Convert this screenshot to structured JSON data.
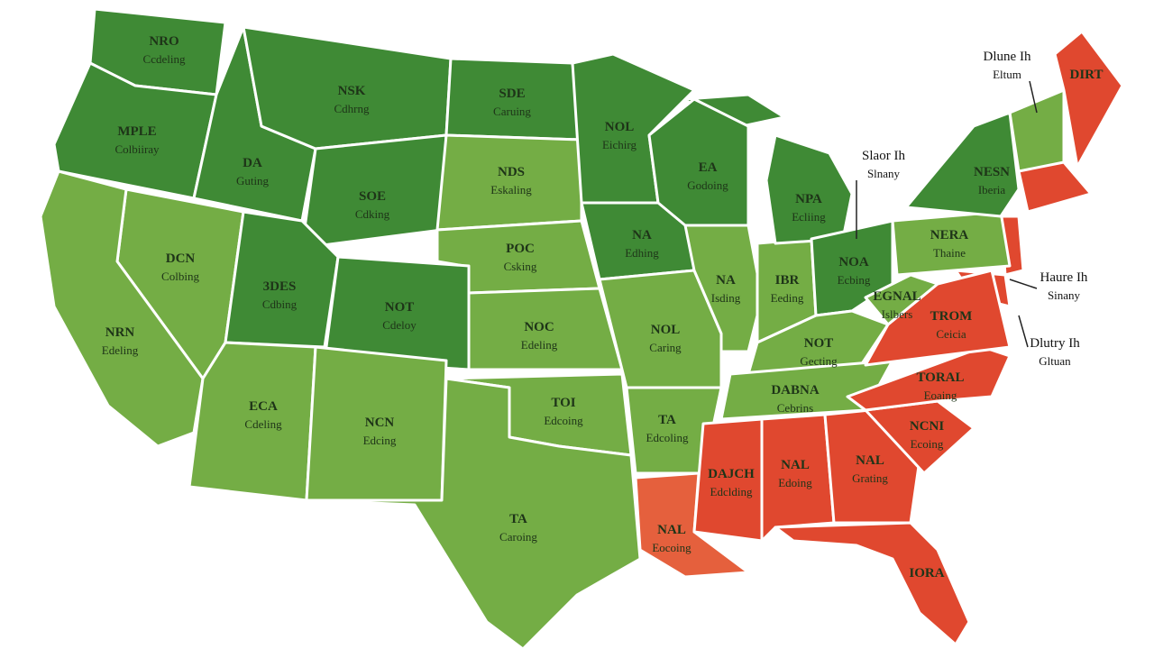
{
  "map": {
    "regions": [
      {
        "label": "NRO",
        "sublabel": "Ccdeling",
        "color": "#3f8a35"
      },
      {
        "label": "MPLE",
        "sublabel": "Colbiiray",
        "color": "#3f8a35"
      },
      {
        "label": "DA",
        "sublabel": "Guting",
        "color": "#3f8a35"
      },
      {
        "label": "NSK",
        "sublabel": "Cdhrng",
        "color": "#3f8a35"
      },
      {
        "label": "SOE",
        "sublabel": "Cdking",
        "color": "#3f8a35"
      },
      {
        "label": "SDE",
        "sublabel": "Caruing",
        "color": "#3f8a35"
      },
      {
        "label": "NDS",
        "sublabel": "Eskaling",
        "color": "#74ad45"
      },
      {
        "label": "POC",
        "sublabel": "Csking",
        "color": "#74ad45"
      },
      {
        "label": "DCN",
        "sublabel": "Colbing",
        "color": "#74ad45"
      },
      {
        "label": "3DES",
        "sublabel": "Cdbing",
        "color": "#3f8a35"
      },
      {
        "label": "NOT",
        "sublabel": "Cdeloy",
        "color": "#3f8a35"
      },
      {
        "label": "NRN",
        "sublabel": "Edeling",
        "color": "#74ad45"
      },
      {
        "label": "ECA",
        "sublabel": "Cdeling",
        "color": "#74ad45"
      },
      {
        "label": "NCN",
        "sublabel": "Edcing",
        "color": "#74ad45"
      },
      {
        "label": "NOC",
        "sublabel": "Edeling",
        "color": "#74ad45"
      },
      {
        "label": "TOI",
        "sublabel": "Edcoing",
        "color": "#74ad45"
      },
      {
        "label": "TA",
        "sublabel": "Caroing",
        "color": "#74ad45"
      },
      {
        "label": "NOL",
        "sublabel": "Eichirg",
        "color": "#3f8a35"
      },
      {
        "label": "NA",
        "sublabel": "Edhing",
        "color": "#3f8a35"
      },
      {
        "label": "NOL",
        "sublabel": "Caring",
        "color": "#74ad45"
      },
      {
        "label": "EA",
        "sublabel": "Godoing",
        "color": "#3f8a35"
      },
      {
        "label": "NA",
        "sublabel": "Isding",
        "color": "#74ad45"
      },
      {
        "label": "IBR",
        "sublabel": "Eeding",
        "color": "#74ad45"
      },
      {
        "label": "NPA",
        "sublabel": "Ecliing",
        "color": "#3f8a35"
      },
      {
        "label": "NOA",
        "sublabel": "Ecbing",
        "color": "#3f8a35"
      },
      {
        "label": "NOT",
        "sublabel": "Gecting",
        "color": "#74ad45"
      },
      {
        "label": "DABNA",
        "sublabel": "Cebrins",
        "color": "#74ad45"
      },
      {
        "label": "TA",
        "sublabel": "Edcoling",
        "color": "#74ad45"
      },
      {
        "label": "NAL",
        "sublabel": "Eocoing",
        "color": "#e5603d"
      },
      {
        "label": "DAJCH",
        "sublabel": "Edclding",
        "color": "#e0482f"
      },
      {
        "label": "NAL",
        "sublabel": "Edoing",
        "color": "#e0482f"
      },
      {
        "label": "NAL",
        "sublabel": "Grating",
        "color": "#e0482f"
      },
      {
        "label": "IORA",
        "color": "#e0482f"
      },
      {
        "label": "NCNI",
        "sublabel": "Ecoing",
        "color": "#e0482f"
      },
      {
        "label": "TORAL",
        "sublabel": "Eoaing",
        "color": "#e0482f"
      },
      {
        "label": "TROM",
        "sublabel": "Ceicia",
        "color": "#e0482f"
      },
      {
        "label": "EGNAL",
        "sublabel": "Islbers",
        "color": "#74ad45"
      },
      {
        "label": "NERA",
        "sublabel": "Thaine",
        "color": "#74ad45"
      },
      {
        "label": "NESN",
        "sublabel": "Iberia",
        "color": "#3f8a35"
      },
      {
        "label": "DIRT",
        "color": "#e0482f"
      }
    ],
    "callouts": [
      {
        "label": "Dlune Ih",
        "sublabel": "Eltum"
      },
      {
        "label": "Slaor Ih",
        "sublabel": "Slnany"
      },
      {
        "label": "Haure Ih",
        "sublabel": "Sinany"
      },
      {
        "label": "Dlutry Ih",
        "sublabel": "Gltuan"
      }
    ]
  }
}
